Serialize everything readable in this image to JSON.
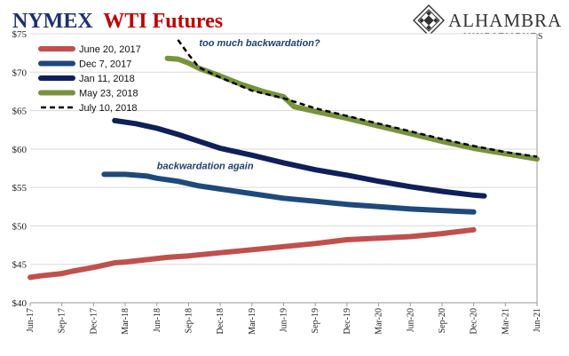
{
  "logo": {
    "name": "Alhambra",
    "subtitle": "Investments"
  },
  "chart_data": {
    "type": "line",
    "title": "NYMEX WTI Futures",
    "title_parts": [
      "NYMEX",
      "WTI Futures"
    ],
    "title_colors": [
      "#1f2f73",
      "#c00000"
    ],
    "ylim": [
      40,
      75
    ],
    "yticks": [
      40,
      45,
      50,
      55,
      60,
      65,
      70,
      75
    ],
    "ytick_labels": [
      "$40",
      "$45",
      "$50",
      "$55",
      "$60",
      "$65",
      "$70",
      "$75"
    ],
    "xlim": [
      "2017-06",
      "2021-06"
    ],
    "xtick_values": [
      "2017-06",
      "2017-09",
      "2017-12",
      "2018-03",
      "2018-06",
      "2018-09",
      "2018-12",
      "2019-03",
      "2019-06",
      "2019-09",
      "2019-12",
      "2020-03",
      "2020-06",
      "2020-09",
      "2020-12",
      "2021-03",
      "2021-06"
    ],
    "xtick_labels": [
      "Jun-17",
      "Sep-17",
      "Dec-17",
      "Mar-18",
      "Jun-18",
      "Sep-18",
      "Dec-18",
      "Mar-19",
      "Jun-19",
      "Sep-19",
      "Dec-19",
      "Mar-20",
      "Jun-20",
      "Sep-20",
      "Dec-20",
      "Mar-21",
      "Jun-21"
    ],
    "grid": true,
    "legend_position": "top-left",
    "series": [
      {
        "name": "June 20, 2017",
        "color": "#c0504d",
        "dash": false,
        "points": [
          [
            "2017-06",
            43.3
          ],
          [
            "2017-07",
            43.5
          ],
          [
            "2017-09",
            43.8
          ],
          [
            "2017-10",
            44.1
          ],
          [
            "2017-12",
            44.6
          ],
          [
            "2018-02",
            45.2
          ],
          [
            "2018-03",
            45.3
          ],
          [
            "2018-05",
            45.6
          ],
          [
            "2018-07",
            45.9
          ],
          [
            "2018-09",
            46.1
          ],
          [
            "2018-12",
            46.5
          ],
          [
            "2019-03",
            46.9
          ],
          [
            "2019-06",
            47.3
          ],
          [
            "2019-09",
            47.7
          ],
          [
            "2019-12",
            48.2
          ],
          [
            "2020-03",
            48.4
          ],
          [
            "2020-06",
            48.6
          ],
          [
            "2020-09",
            49.0
          ],
          [
            "2020-12",
            49.5
          ]
        ]
      },
      {
        "name": "Dec 7, 2017",
        "color": "#1f497d",
        "dash": false,
        "points": [
          [
            "2018-01",
            56.7
          ],
          [
            "2018-02",
            56.7
          ],
          [
            "2018-03",
            56.7
          ],
          [
            "2018-05",
            56.5
          ],
          [
            "2018-06",
            56.2
          ],
          [
            "2018-08",
            55.8
          ],
          [
            "2018-10",
            55.2
          ],
          [
            "2018-12",
            54.8
          ],
          [
            "2019-03",
            54.2
          ],
          [
            "2019-06",
            53.6
          ],
          [
            "2019-09",
            53.2
          ],
          [
            "2019-12",
            52.8
          ],
          [
            "2020-03",
            52.5
          ],
          [
            "2020-06",
            52.2
          ],
          [
            "2020-09",
            52.0
          ],
          [
            "2020-12",
            51.8
          ]
        ]
      },
      {
        "name": "Jan 11, 2018",
        "color": "#0f1f5a",
        "dash": false,
        "points": [
          [
            "2018-02",
            63.7
          ],
          [
            "2018-04",
            63.3
          ],
          [
            "2018-06",
            62.7
          ],
          [
            "2018-08",
            61.9
          ],
          [
            "2018-10",
            61.0
          ],
          [
            "2018-12",
            60.1
          ],
          [
            "2019-03",
            59.2
          ],
          [
            "2019-06",
            58.2
          ],
          [
            "2019-09",
            57.3
          ],
          [
            "2019-12",
            56.6
          ],
          [
            "2020-03",
            55.8
          ],
          [
            "2020-06",
            55.1
          ],
          [
            "2020-09",
            54.5
          ],
          [
            "2020-12",
            54.0
          ],
          [
            "2021-01",
            53.9
          ]
        ]
      },
      {
        "name": "May 23, 2018",
        "color": "#77933c",
        "dash": false,
        "points": [
          [
            "2018-07",
            71.8
          ],
          [
            "2018-08",
            71.7
          ],
          [
            "2018-09",
            71.2
          ],
          [
            "2018-10",
            70.5
          ],
          [
            "2018-12",
            69.5
          ],
          [
            "2019-02",
            68.4
          ],
          [
            "2019-04",
            67.5
          ],
          [
            "2019-06",
            66.8
          ],
          [
            "2019-07",
            65.5
          ],
          [
            "2019-09",
            64.9
          ],
          [
            "2019-12",
            64.0
          ],
          [
            "2020-03",
            63.0
          ],
          [
            "2020-06",
            62.0
          ],
          [
            "2020-09",
            61.0
          ],
          [
            "2020-12",
            60.1
          ],
          [
            "2021-03",
            59.4
          ],
          [
            "2021-06",
            58.7
          ]
        ]
      },
      {
        "name": "July 10, 2018",
        "color": "#000000",
        "dash": true,
        "points": [
          [
            "2018-08",
            74.2
          ],
          [
            "2018-09",
            72.3
          ],
          [
            "2018-10",
            70.6
          ],
          [
            "2018-12",
            69.3
          ],
          [
            "2019-03",
            67.6
          ],
          [
            "2019-06",
            66.6
          ],
          [
            "2019-09",
            65.3
          ],
          [
            "2019-12",
            64.3
          ],
          [
            "2020-03",
            63.3
          ],
          [
            "2020-06",
            62.3
          ],
          [
            "2020-09",
            61.3
          ],
          [
            "2020-12",
            60.4
          ],
          [
            "2021-03",
            59.6
          ],
          [
            "2021-06",
            59.0
          ]
        ]
      }
    ],
    "annotations": [
      {
        "text": "too much backwardation?",
        "x": "2018-10",
        "y": 73.4
      },
      {
        "text": "backwardation again",
        "x": "2018-06",
        "y": 57.4
      }
    ]
  }
}
